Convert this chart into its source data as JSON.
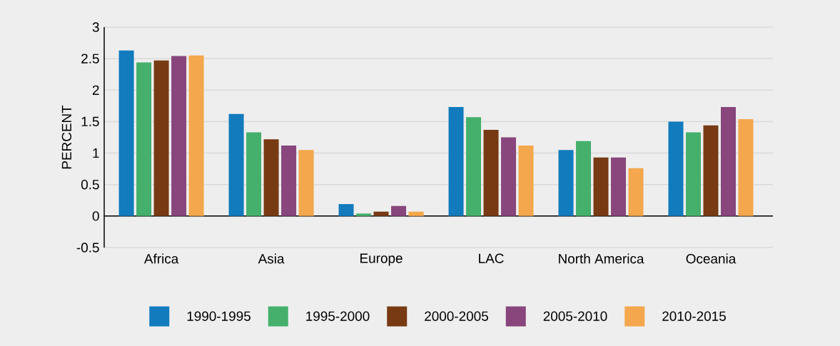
{
  "chart_data": {
    "type": "bar",
    "ylabel": "PERCENT",
    "categories": [
      "Africa",
      "Asia",
      "Europe",
      "LAC",
      "North America",
      "Oceania"
    ],
    "series": [
      {
        "name": "1990-1995",
        "color": "#117bbd",
        "values": [
          2.63,
          1.62,
          0.19,
          1.73,
          1.05,
          1.5
        ]
      },
      {
        "name": "1995-2000",
        "color": "#44b06c",
        "values": [
          2.44,
          1.33,
          0.04,
          1.57,
          1.19,
          1.33
        ]
      },
      {
        "name": "2000-2005",
        "color": "#773a13",
        "values": [
          2.47,
          1.22,
          0.07,
          1.37,
          0.93,
          1.44
        ]
      },
      {
        "name": "2005-2010",
        "color": "#88467c",
        "values": [
          2.54,
          1.12,
          0.16,
          1.25,
          0.93,
          1.73
        ]
      },
      {
        "name": "2010-2015",
        "color": "#f4a74c",
        "values": [
          2.55,
          1.05,
          0.07,
          1.12,
          0.76,
          1.54
        ]
      }
    ],
    "ylim": [
      -0.5,
      3
    ],
    "yticks": [
      -0.5,
      0,
      0.5,
      1,
      1.5,
      2,
      2.5,
      3
    ],
    "grid": "y",
    "legend": "bottom"
  }
}
